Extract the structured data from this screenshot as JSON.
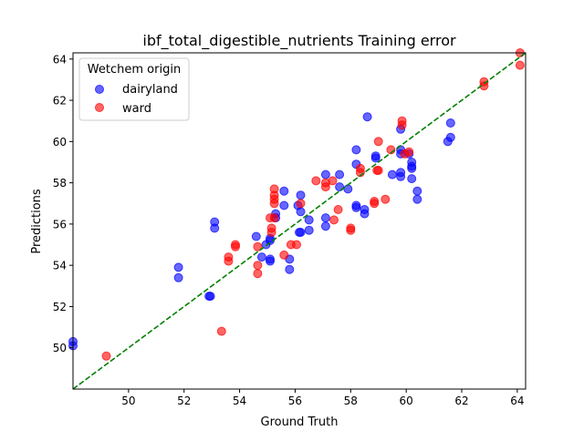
{
  "chart_data": {
    "type": "scatter",
    "title": "ibf_total_digestible_nutrients Training error",
    "xlabel": "Ground Truth",
    "ylabel": "Predictions",
    "xlim": [
      48.0,
      64.3
    ],
    "ylim": [
      48.0,
      64.3
    ],
    "xticks": [
      "50",
      "52",
      "54",
      "56",
      "58",
      "60",
      "62",
      "64"
    ],
    "yticks": [
      "50",
      "52",
      "54",
      "56",
      "58",
      "60",
      "62",
      "64"
    ],
    "grid": false,
    "legend": {
      "title": "Wetchem origin",
      "placement": "top-left"
    },
    "reference_line": {
      "type": "identity",
      "color": "#008000",
      "style": "dashed"
    },
    "series": [
      {
        "name": "dairyland",
        "color": "#0000ff",
        "points": [
          [
            48.0,
            50.3
          ],
          [
            48.0,
            50.1
          ],
          [
            51.8,
            53.9
          ],
          [
            51.8,
            53.4
          ],
          [
            52.9,
            52.5
          ],
          [
            52.95,
            52.5
          ],
          [
            53.1,
            56.1
          ],
          [
            53.1,
            55.8
          ],
          [
            54.6,
            55.4
          ],
          [
            54.8,
            54.4
          ],
          [
            54.95,
            55.0
          ],
          [
            55.1,
            55.2
          ],
          [
            55.1,
            55.3
          ],
          [
            55.1,
            54.3
          ],
          [
            55.1,
            54.2
          ],
          [
            55.3,
            56.5
          ],
          [
            55.3,
            56.3
          ],
          [
            55.6,
            57.6
          ],
          [
            55.6,
            56.9
          ],
          [
            55.8,
            54.3
          ],
          [
            55.8,
            53.8
          ],
          [
            56.1,
            56.9
          ],
          [
            56.2,
            57.4
          ],
          [
            56.2,
            56.6
          ],
          [
            56.2,
            55.6
          ],
          [
            56.15,
            55.6
          ],
          [
            56.5,
            56.2
          ],
          [
            56.5,
            55.7
          ],
          [
            57.1,
            58.4
          ],
          [
            57.1,
            56.3
          ],
          [
            57.1,
            55.9
          ],
          [
            57.6,
            58.4
          ],
          [
            57.6,
            57.8
          ],
          [
            57.9,
            57.7
          ],
          [
            58.2,
            59.6
          ],
          [
            58.2,
            58.9
          ],
          [
            58.2,
            56.9
          ],
          [
            58.2,
            56.8
          ],
          [
            58.5,
            56.7
          ],
          [
            58.5,
            56.5
          ],
          [
            58.6,
            61.2
          ],
          [
            58.9,
            59.3
          ],
          [
            58.9,
            59.2
          ],
          [
            59.5,
            58.4
          ],
          [
            59.8,
            60.6
          ],
          [
            59.8,
            59.6
          ],
          [
            59.8,
            59.4
          ],
          [
            59.8,
            58.5
          ],
          [
            59.8,
            58.3
          ],
          [
            60.1,
            59.4
          ],
          [
            60.2,
            59.0
          ],
          [
            60.2,
            58.8
          ],
          [
            60.2,
            58.7
          ],
          [
            60.2,
            58.2
          ],
          [
            60.4,
            57.6
          ],
          [
            60.4,
            57.2
          ],
          [
            61.5,
            60.0
          ],
          [
            61.6,
            60.9
          ],
          [
            61.6,
            60.2
          ]
        ]
      },
      {
        "name": "ward",
        "color": "#ff0000",
        "points": [
          [
            49.2,
            49.6
          ],
          [
            53.35,
            50.8
          ],
          [
            53.6,
            54.4
          ],
          [
            53.6,
            54.2
          ],
          [
            53.85,
            55.0
          ],
          [
            53.85,
            54.9
          ],
          [
            54.65,
            54.9
          ],
          [
            54.65,
            54.0
          ],
          [
            54.65,
            53.6
          ],
          [
            55.1,
            56.3
          ],
          [
            55.15,
            55.8
          ],
          [
            55.15,
            55.6
          ],
          [
            55.25,
            57.7
          ],
          [
            55.25,
            57.4
          ],
          [
            55.25,
            57.2
          ],
          [
            55.25,
            57.0
          ],
          [
            55.25,
            56.3
          ],
          [
            55.6,
            54.5
          ],
          [
            55.85,
            55.0
          ],
          [
            56.05,
            55.0
          ],
          [
            56.2,
            57.0
          ],
          [
            56.75,
            58.1
          ],
          [
            57.1,
            58.0
          ],
          [
            57.1,
            57.8
          ],
          [
            57.35,
            58.1
          ],
          [
            57.4,
            56.2
          ],
          [
            57.55,
            56.7
          ],
          [
            58.0,
            55.8
          ],
          [
            58.0,
            55.7
          ],
          [
            58.35,
            58.7
          ],
          [
            58.35,
            58.5
          ],
          [
            58.85,
            57.1
          ],
          [
            58.85,
            57.0
          ],
          [
            58.95,
            58.6
          ],
          [
            59.0,
            60.0
          ],
          [
            59.0,
            58.6
          ],
          [
            59.25,
            57.2
          ],
          [
            59.45,
            59.6
          ],
          [
            59.85,
            61.0
          ],
          [
            59.85,
            60.8
          ],
          [
            59.95,
            59.4
          ],
          [
            60.1,
            59.5
          ],
          [
            62.8,
            62.9
          ],
          [
            62.8,
            62.7
          ],
          [
            64.1,
            64.3
          ],
          [
            64.1,
            63.7
          ]
        ]
      }
    ]
  }
}
